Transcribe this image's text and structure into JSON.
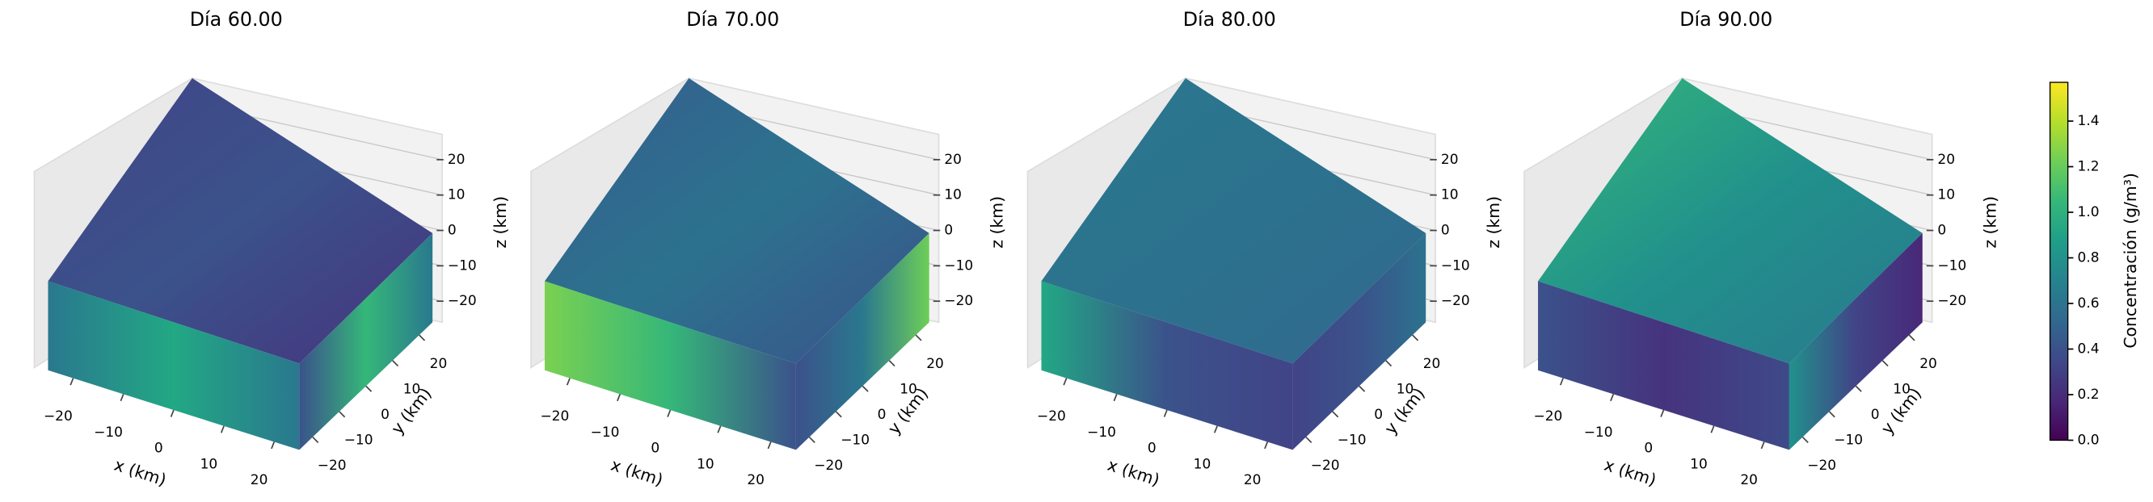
{
  "chart_data": [
    {
      "type": "volume3d",
      "title": "Día 60.00",
      "xlabel": "x (km)",
      "ylabel": "y (km)",
      "zlabel": "z (km)",
      "xlim": [
        -25,
        25
      ],
      "ylim": [
        -25,
        25
      ],
      "zlim": [
        -25,
        25
      ],
      "xticks": [
        {
          "value": -20,
          "label": "−20"
        },
        {
          "value": -10,
          "label": "−10"
        },
        0,
        10,
        20
      ],
      "yticks": [
        {
          "value": -20,
          "label": "−20"
        },
        {
          "value": -10,
          "label": "−10"
        },
        0,
        10,
        20
      ],
      "zticks": [
        {
          "value": -20,
          "label": "−20"
        },
        {
          "value": -10,
          "label": "−10"
        },
        0,
        10,
        20
      ],
      "face_colors": {
        "top": [
          "#414487",
          "#3b528b",
          "#46337e"
        ],
        "left": [
          "#2a788e",
          "#22a884",
          "#2a788e"
        ],
        "right": [
          "#3b528b",
          "#35b779",
          "#2a788e"
        ]
      }
    },
    {
      "type": "volume3d",
      "title": "Día 70.00",
      "xlabel": "x (km)",
      "ylabel": "y (km)",
      "zlabel": "z (km)",
      "xlim": [
        -25,
        25
      ],
      "ylim": [
        -25,
        25
      ],
      "zlim": [
        -25,
        25
      ],
      "xticks": [
        {
          "value": -20,
          "label": "−20"
        },
        {
          "value": -10,
          "label": "−10"
        },
        0,
        10,
        20
      ],
      "yticks": [
        {
          "value": -20,
          "label": "−20"
        },
        {
          "value": -10,
          "label": "−10"
        },
        0,
        10,
        20
      ],
      "zticks": [
        {
          "value": -20,
          "label": "−20"
        },
        {
          "value": -10,
          "label": "−10"
        },
        0,
        10,
        20
      ],
      "face_colors": {
        "top": [
          "#365d8d",
          "#2c728e",
          "#3b528b"
        ],
        "left": [
          "#7ad151",
          "#35b779",
          "#3b528b"
        ],
        "right": [
          "#3b528b",
          "#2a788e",
          "#6ece58"
        ]
      }
    },
    {
      "type": "volume3d",
      "title": "Día 80.00",
      "xlabel": "x (km)",
      "ylabel": "y (km)",
      "zlabel": "z (km)",
      "xlim": [
        -25,
        25
      ],
      "ylim": [
        -25,
        25
      ],
      "zlim": [
        -25,
        25
      ],
      "xticks": [
        {
          "value": -20,
          "label": "−20"
        },
        {
          "value": -10,
          "label": "−10"
        },
        0,
        10,
        20
      ],
      "yticks": [
        {
          "value": -20,
          "label": "−20"
        },
        {
          "value": -10,
          "label": "−10"
        },
        0,
        10,
        20
      ],
      "zticks": [
        {
          "value": -20,
          "label": "−20"
        },
        {
          "value": -10,
          "label": "−10"
        },
        0,
        10,
        20
      ],
      "face_colors": {
        "top": [
          "#2a788e",
          "#2c728e",
          "#31688e"
        ],
        "left": [
          "#22a884",
          "#3b528b",
          "#414487"
        ],
        "right": [
          "#414487",
          "#3b528b",
          "#2c728e"
        ]
      }
    },
    {
      "type": "volume3d",
      "title": "Día 90.00",
      "xlabel": "x (km)",
      "ylabel": "y (km)",
      "zlabel": "z (km)",
      "xlim": [
        -25,
        25
      ],
      "ylim": [
        -25,
        25
      ],
      "zlim": [
        -25,
        25
      ],
      "xticks": [
        {
          "value": -20,
          "label": "−20"
        },
        {
          "value": -10,
          "label": "−10"
        },
        0,
        10,
        20
      ],
      "yticks": [
        {
          "value": -20,
          "label": "−20"
        },
        {
          "value": -10,
          "label": "−10"
        },
        0,
        10,
        20
      ],
      "zticks": [
        {
          "value": -20,
          "label": "−20"
        },
        {
          "value": -10,
          "label": "−10"
        },
        0,
        10,
        20
      ],
      "face_colors": {
        "top": [
          "#35b779",
          "#21918c",
          "#2a788e"
        ],
        "left": [
          "#3b528b",
          "#46337e",
          "#3e4a89"
        ],
        "right": [
          "#21918c",
          "#414487",
          "#482878"
        ]
      }
    }
  ],
  "colorbar": {
    "label": "Concentración (g/m³)",
    "colormap": "viridis",
    "clim": [
      0,
      1.57
    ],
    "ticks": [
      {
        "value": 0,
        "label": "0.0"
      },
      0.2,
      0.4,
      0.6,
      0.8,
      {
        "value": 1,
        "label": "1.0"
      },
      1.2,
      1.4
    ]
  }
}
